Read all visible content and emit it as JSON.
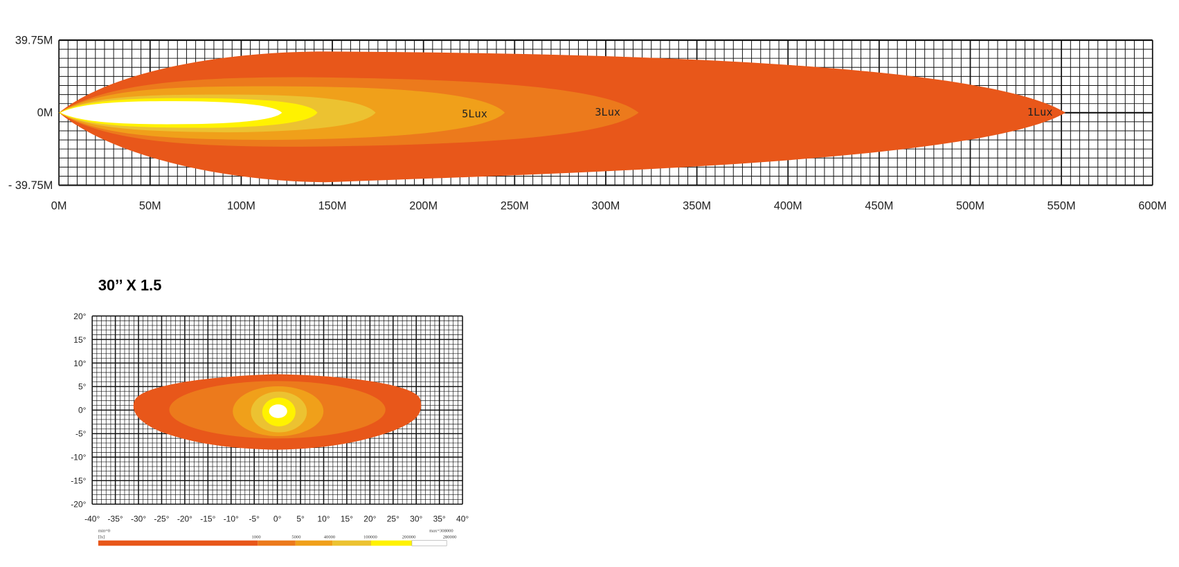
{
  "top_diagram": {
    "y_labels": [
      "39.75M",
      "0M",
      "- 39.75M"
    ],
    "x_labels": [
      "0M",
      "50M",
      "100M",
      "150M",
      "200M",
      "250M",
      "300M",
      "350M",
      "400M",
      "450M",
      "500M",
      "550M",
      "600M"
    ],
    "contour_labels": [
      "5Lux",
      "3Lux",
      "1Lux"
    ]
  },
  "bottom_diagram": {
    "title": "30’’ X 1.5",
    "y_labels": [
      "20°",
      "15°",
      "10°",
      "5°",
      "0°",
      "-5°",
      "-10°",
      "-15°",
      "-20°"
    ],
    "x_labels": [
      "-40°",
      "-35°",
      "-30°",
      "-25°",
      "-20°",
      "-15°",
      "-10°",
      "-5°",
      "0°",
      "5°",
      "10°",
      "15°",
      "20°",
      "25°",
      "30°",
      "35°",
      "40°"
    ],
    "legend": {
      "min_label": "min=0",
      "unit": "[lx]",
      "max_label": "max=308000",
      "values": [
        "1000",
        "5000",
        "40000",
        "100000",
        "200000",
        "280000"
      ]
    }
  }
}
